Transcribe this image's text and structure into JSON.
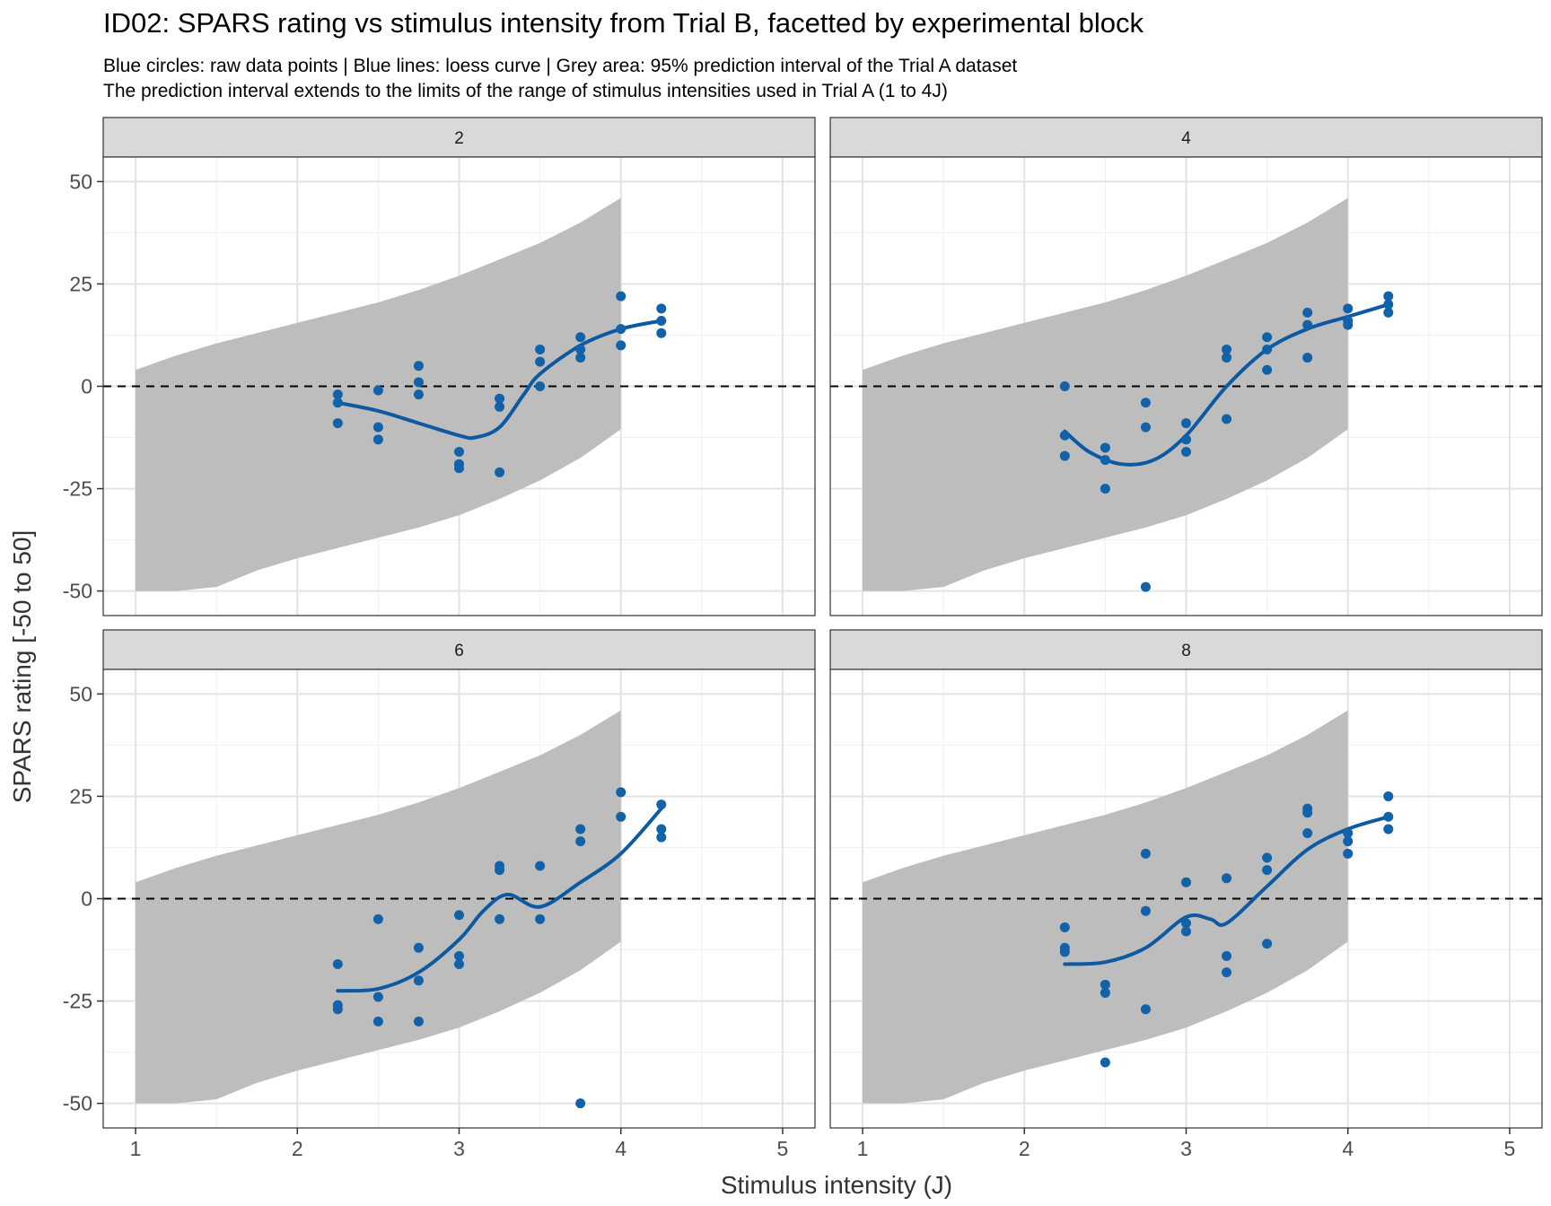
{
  "chart_data": {
    "type": "scatter",
    "title": "ID02: SPARS rating vs stimulus intensity from Trial B, facetted by experimental block",
    "subtitle": [
      "Blue circles: raw data points | Blue lines: loess curve | Grey area: 95% prediction interval of the Trial A dataset",
      "The prediction interval extends to the limits of the range of stimulus intensities used in Trial A (1 to 4J)"
    ],
    "xlabel": "Stimulus intensity (J)",
    "ylabel": "SPARS rating [-50 to 50]",
    "xlim": [
      0.8,
      5.2
    ],
    "ylim": [
      -56,
      56
    ],
    "xticks": [
      1,
      2,
      3,
      4,
      5
    ],
    "yticks": [
      -50,
      -25,
      0,
      25,
      50
    ],
    "ytick_labels": [
      "-50",
      "-25",
      "0",
      "25",
      "50"
    ],
    "grid": true,
    "reference_line": {
      "y": 0,
      "style": "dashed",
      "color": "#000000"
    },
    "colors": {
      "points": "#1162a8",
      "loess": "#0d5aa3",
      "band": "#bdbdbd",
      "strip": "#d9d9d9"
    },
    "prediction_interval": {
      "x": [
        1,
        1.25,
        1.5,
        1.75,
        2,
        2.25,
        2.5,
        2.75,
        3,
        3.25,
        3.5,
        3.75,
        4
      ],
      "upper": [
        4,
        7.5,
        10.5,
        13,
        15.5,
        18,
        20.5,
        23.5,
        27,
        31,
        35,
        40,
        46
      ],
      "lower": [
        -50,
        -50,
        -49,
        -45,
        -42,
        -39.5,
        -37,
        -34.5,
        -31.5,
        -27.5,
        -23,
        -17.5,
        -10.5
      ]
    },
    "facets": [
      {
        "name": "2",
        "points": [
          [
            2.25,
            -2
          ],
          [
            2.25,
            -4
          ],
          [
            2.25,
            -9
          ],
          [
            2.5,
            -1
          ],
          [
            2.5,
            -10
          ],
          [
            2.5,
            -13
          ],
          [
            2.75,
            5
          ],
          [
            2.75,
            1
          ],
          [
            2.75,
            -2
          ],
          [
            3,
            -16
          ],
          [
            3,
            -19
          ],
          [
            3,
            -20
          ],
          [
            3.25,
            -3
          ],
          [
            3.25,
            -5
          ],
          [
            3.25,
            -21
          ],
          [
            3.5,
            9
          ],
          [
            3.5,
            6
          ],
          [
            3.5,
            0
          ],
          [
            3.75,
            12
          ],
          [
            3.75,
            9
          ],
          [
            3.75,
            7
          ],
          [
            4,
            22
          ],
          [
            4,
            14
          ],
          [
            4,
            10
          ],
          [
            4.25,
            19
          ],
          [
            4.25,
            16
          ],
          [
            4.25,
            13
          ]
        ],
        "loess": [
          [
            2.25,
            -4
          ],
          [
            2.5,
            -6
          ],
          [
            2.75,
            -9
          ],
          [
            3,
            -12
          ],
          [
            3.1,
            -12.5
          ],
          [
            3.25,
            -10
          ],
          [
            3.4,
            -2
          ],
          [
            3.5,
            3
          ],
          [
            3.75,
            10
          ],
          [
            4,
            14
          ],
          [
            4.25,
            16
          ]
        ]
      },
      {
        "name": "4",
        "points": [
          [
            2.25,
            0
          ],
          [
            2.25,
            -12
          ],
          [
            2.25,
            -17
          ],
          [
            2.5,
            -15
          ],
          [
            2.5,
            -18
          ],
          [
            2.5,
            -25
          ],
          [
            2.75,
            -4
          ],
          [
            2.75,
            -10
          ],
          [
            2.75,
            -49
          ],
          [
            3,
            -9
          ],
          [
            3,
            -13
          ],
          [
            3,
            -16
          ],
          [
            3.25,
            9
          ],
          [
            3.25,
            7
          ],
          [
            3.25,
            -8
          ],
          [
            3.5,
            12
          ],
          [
            3.5,
            9
          ],
          [
            3.5,
            4
          ],
          [
            3.75,
            18
          ],
          [
            3.75,
            15
          ],
          [
            3.75,
            7
          ],
          [
            4,
            19
          ],
          [
            4,
            16
          ],
          [
            4,
            15
          ],
          [
            4.25,
            22
          ],
          [
            4.25,
            20
          ],
          [
            4.25,
            18
          ]
        ],
        "loess": [
          [
            2.25,
            -11
          ],
          [
            2.4,
            -16
          ],
          [
            2.6,
            -19
          ],
          [
            2.8,
            -18
          ],
          [
            3,
            -12
          ],
          [
            3.25,
            0
          ],
          [
            3.5,
            9
          ],
          [
            3.75,
            14
          ],
          [
            4,
            17
          ],
          [
            4.25,
            20
          ]
        ]
      },
      {
        "name": "6",
        "points": [
          [
            2.25,
            -16
          ],
          [
            2.25,
            -26
          ],
          [
            2.25,
            -27
          ],
          [
            2.5,
            -5
          ],
          [
            2.5,
            -24
          ],
          [
            2.5,
            -30
          ],
          [
            2.75,
            -12
          ],
          [
            2.75,
            -20
          ],
          [
            2.75,
            -30
          ],
          [
            3,
            -4
          ],
          [
            3,
            -14
          ],
          [
            3,
            -16
          ],
          [
            3.25,
            8
          ],
          [
            3.25,
            7
          ],
          [
            3.25,
            -5
          ],
          [
            3.5,
            8
          ],
          [
            3.5,
            -5
          ],
          [
            3.75,
            17
          ],
          [
            3.75,
            14
          ],
          [
            3.75,
            -50
          ],
          [
            4,
            26
          ],
          [
            4,
            20
          ],
          [
            4.25,
            23
          ],
          [
            4.25,
            17
          ],
          [
            4.25,
            15
          ]
        ],
        "loess": [
          [
            2.25,
            -22.5
          ],
          [
            2.5,
            -22
          ],
          [
            2.75,
            -18
          ],
          [
            3,
            -10
          ],
          [
            3.15,
            -3
          ],
          [
            3.3,
            1
          ],
          [
            3.5,
            -2
          ],
          [
            3.75,
            4
          ],
          [
            4,
            11
          ],
          [
            4.25,
            22
          ]
        ]
      },
      {
        "name": "8",
        "points": [
          [
            2.25,
            -7
          ],
          [
            2.25,
            -12
          ],
          [
            2.25,
            -13
          ],
          [
            2.5,
            -21
          ],
          [
            2.5,
            -23
          ],
          [
            2.5,
            -40
          ],
          [
            2.75,
            11
          ],
          [
            2.75,
            -3
          ],
          [
            2.75,
            -27
          ],
          [
            3,
            4
          ],
          [
            3,
            -6
          ],
          [
            3,
            -8
          ],
          [
            3.25,
            5
          ],
          [
            3.25,
            -14
          ],
          [
            3.25,
            -18
          ],
          [
            3.5,
            10
          ],
          [
            3.5,
            7
          ],
          [
            3.5,
            -11
          ],
          [
            3.75,
            22
          ],
          [
            3.75,
            21
          ],
          [
            3.75,
            16
          ],
          [
            4,
            16
          ],
          [
            4,
            14
          ],
          [
            4,
            11
          ],
          [
            4.25,
            25
          ],
          [
            4.25,
            20
          ],
          [
            4.25,
            17
          ]
        ],
        "loess": [
          [
            2.25,
            -16
          ],
          [
            2.5,
            -15.5
          ],
          [
            2.75,
            -12
          ],
          [
            3,
            -4.5
          ],
          [
            3.15,
            -5
          ],
          [
            3.25,
            -6
          ],
          [
            3.5,
            3
          ],
          [
            3.75,
            12
          ],
          [
            4,
            17
          ],
          [
            4.25,
            20
          ]
        ]
      }
    ]
  }
}
